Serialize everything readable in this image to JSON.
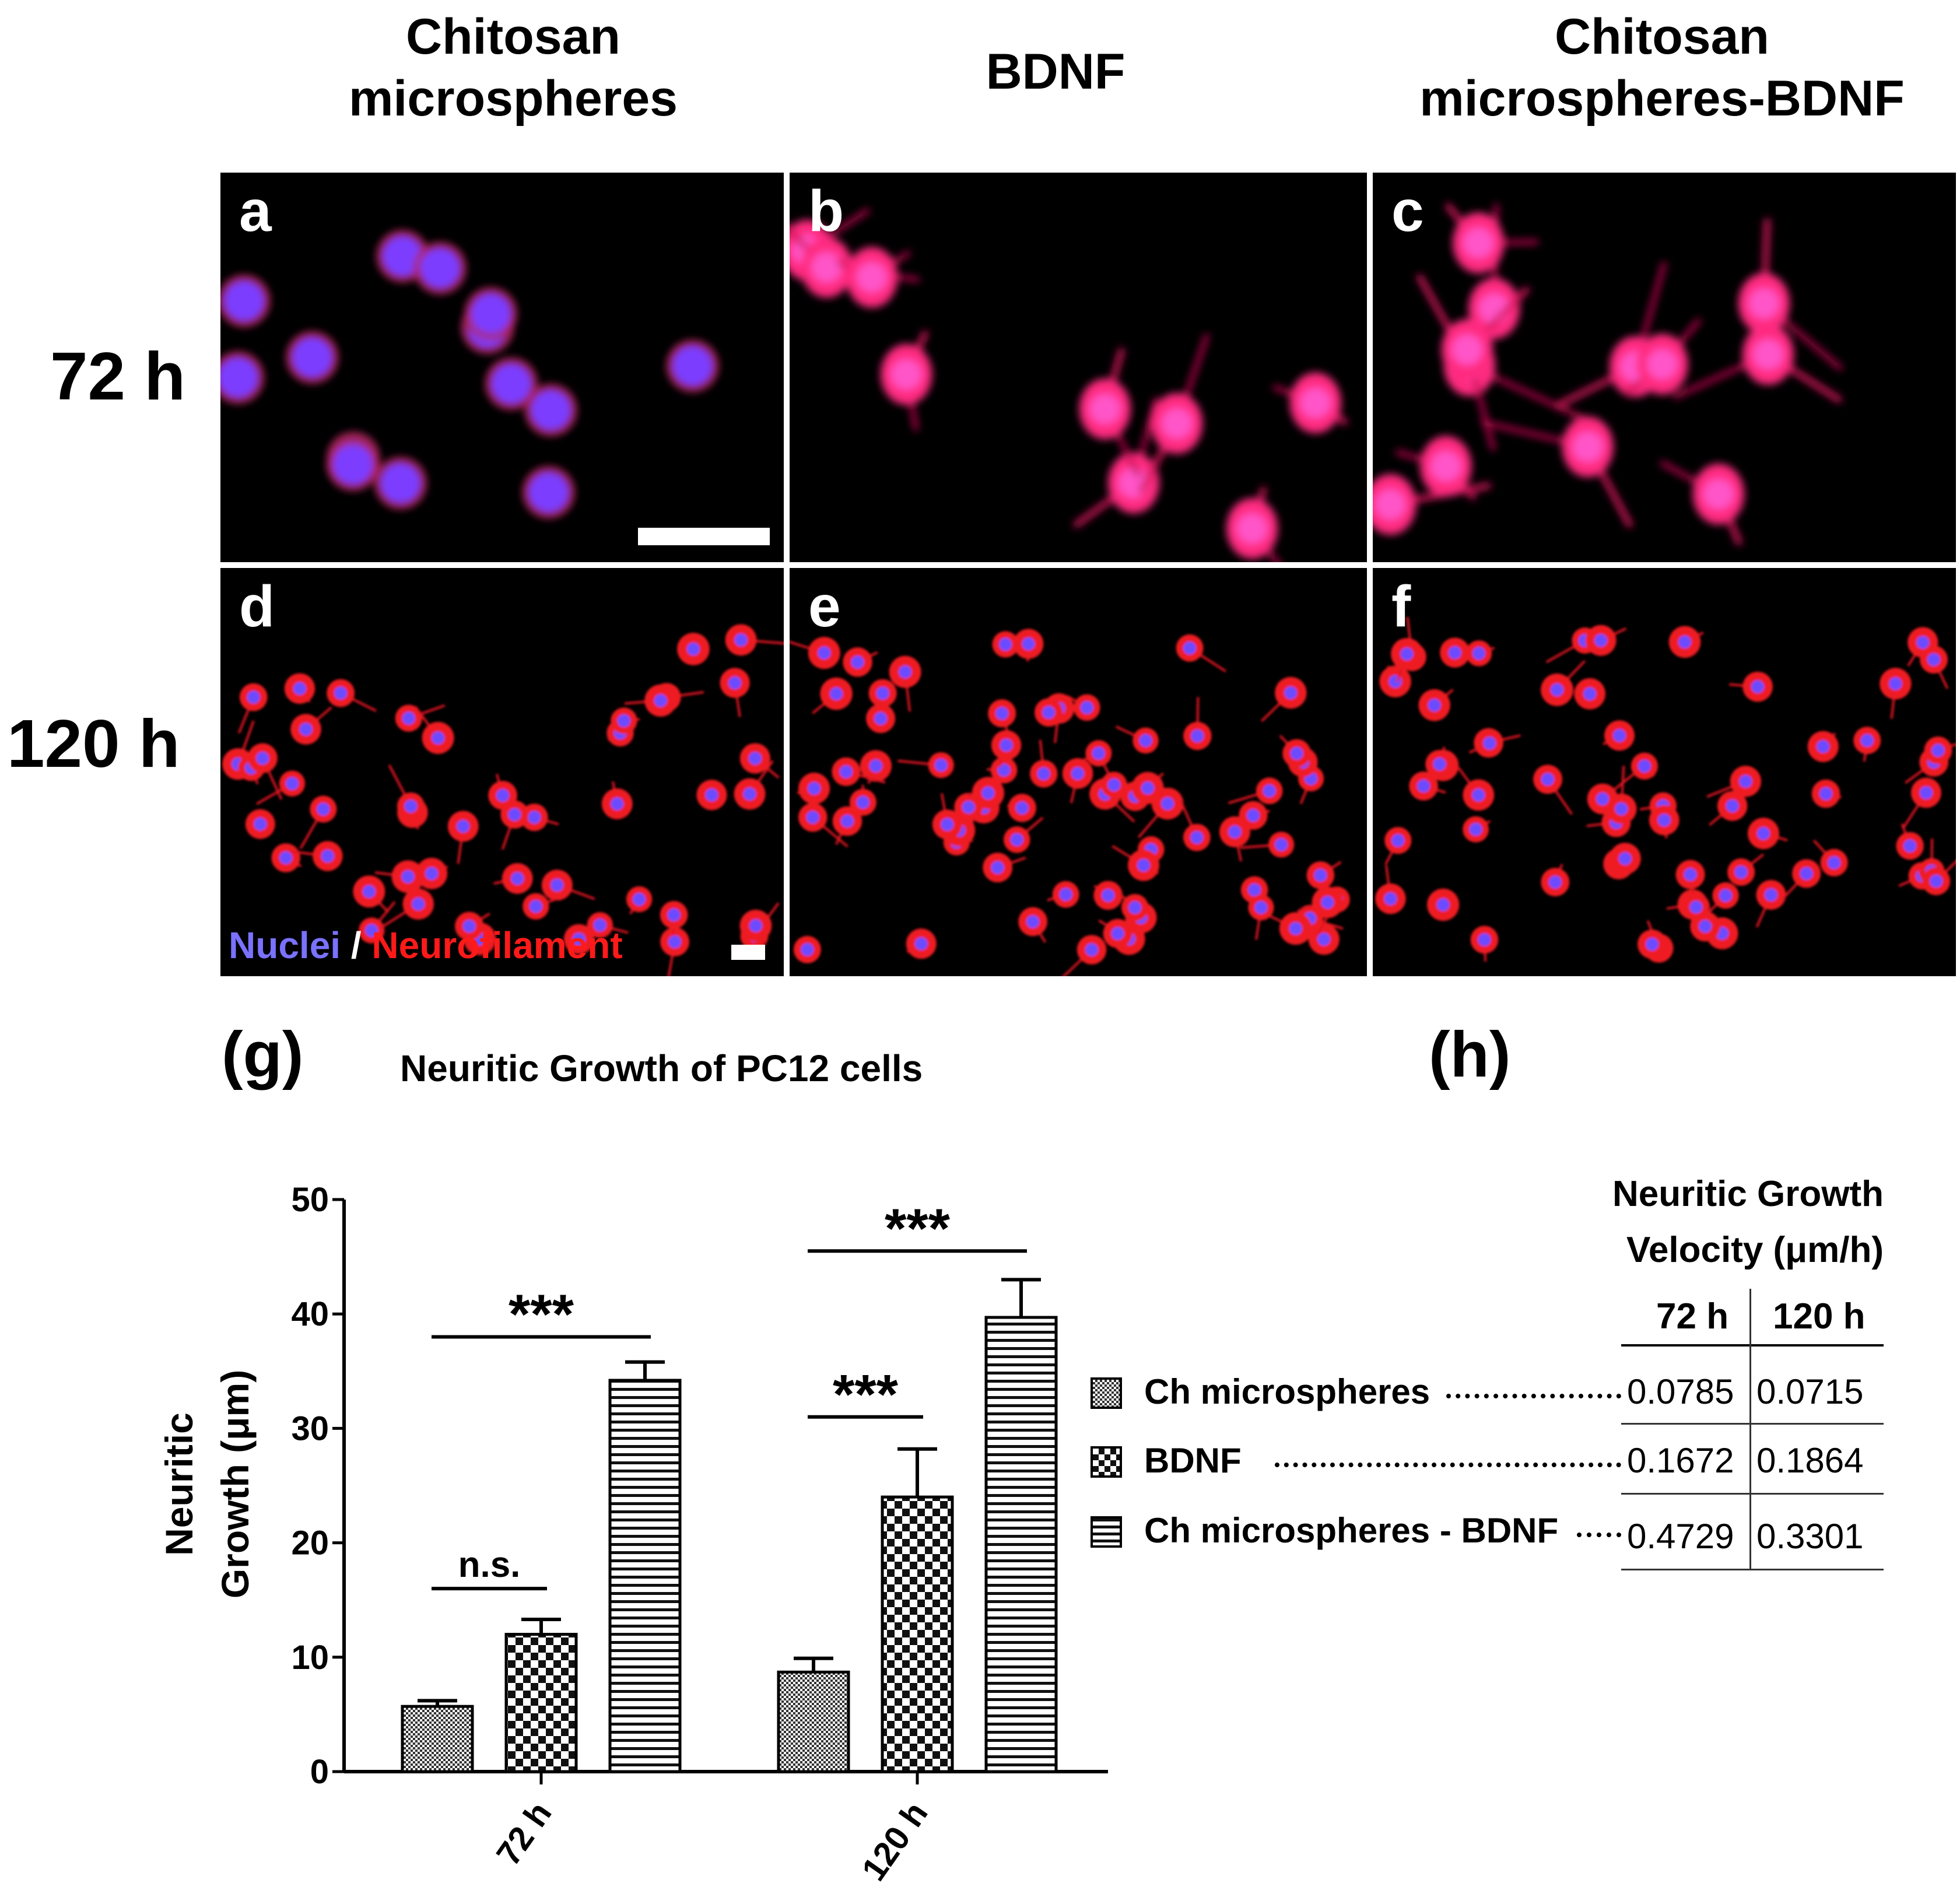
{
  "columns": [
    {
      "line1": "Chitosan",
      "line2": "microspheres"
    },
    {
      "line1": "BDNF",
      "line2": ""
    },
    {
      "line1": "Chitosan",
      "line2": "microspheres-BDNF"
    }
  ],
  "rows": [
    "72 h",
    "120 h"
  ],
  "panels": [
    "a",
    "b",
    "c",
    "d",
    "e",
    "f"
  ],
  "stain_legend": {
    "nuclei": "Nuclei",
    "separator": "/",
    "neurofilament": "Neurofilament"
  },
  "colors": {
    "nuclei": "#7a72ff",
    "neurofilament": "#ff1a1a",
    "cell_body_72": "#ff2a8a"
  },
  "figure_labels": {
    "g": "(g)",
    "h": "(h)"
  },
  "chart_data": {
    "type": "bar",
    "title": "Neuritic Growth of PC12 cells",
    "ylabel_line1": "Neuritic",
    "ylabel_line2": "Growth (μm)",
    "xlabel": "",
    "categories": [
      "72 h",
      "120 h"
    ],
    "ylim": [
      0,
      50
    ],
    "yticks": [
      0,
      10,
      20,
      30,
      40,
      50
    ],
    "series": [
      {
        "name": "Ch microspheres",
        "values": [
          5.7,
          8.7
        ],
        "errors": [
          0.5,
          1.2
        ],
        "pattern": "fine-dots"
      },
      {
        "name": "BDNF",
        "values": [
          12.0,
          24.0
        ],
        "errors": [
          1.3,
          4.2
        ],
        "pattern": "checker"
      },
      {
        "name": "Ch microspheres - BDNF",
        "values": [
          34.2,
          39.7
        ],
        "errors": [
          1.6,
          3.3
        ],
        "pattern": "horizontal-lines"
      }
    ],
    "significance": [
      {
        "group": "72 h",
        "from_series": 0,
        "to_series": 1,
        "label": "n.s.",
        "y": 16
      },
      {
        "group": "72 h",
        "from_series": 0,
        "to_series": 2,
        "label": "***",
        "y": 38
      },
      {
        "group": "120 h",
        "from_series": 0,
        "to_series": 1,
        "label": "***",
        "y": 31
      },
      {
        "group": "120 h",
        "from_series": 0,
        "to_series": 2,
        "label": "***",
        "y": 45.5
      }
    ],
    "grid": false
  },
  "velocity_table": {
    "title_line1": "Neuritic Growth",
    "title_line2": "Velocity (μm/h)",
    "headers": [
      "72 h",
      "120 h"
    ],
    "rows": [
      {
        "label": "Ch microspheres",
        "v72": "0.0785",
        "v120": "0.0715"
      },
      {
        "label": "BDNF",
        "v72": "0.1672",
        "v120": "0.1864"
      },
      {
        "label": "Ch microspheres - BDNF",
        "v72": "0.4729",
        "v120": "0.3301"
      }
    ]
  }
}
